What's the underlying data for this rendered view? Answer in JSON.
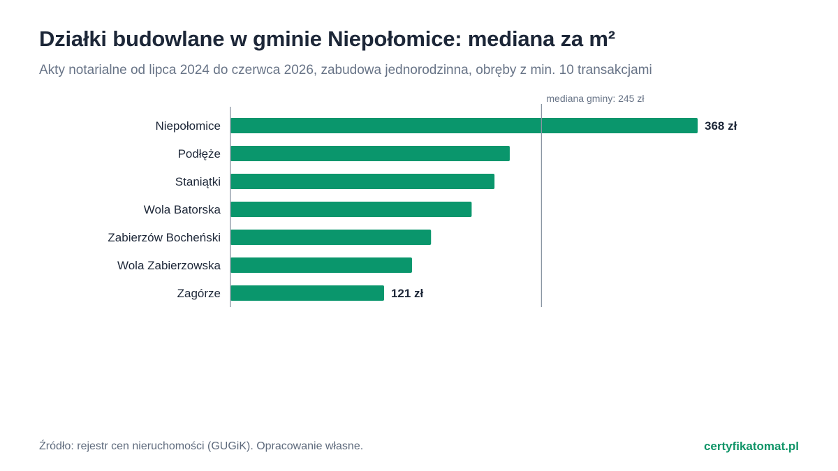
{
  "header": {
    "title": "Działki budowlane w gminie Niepołomice: mediana za m²",
    "subtitle": "Akty notarialne od lipca 2024 do czerwca 2026, zabudowa jednorodzinna, obręby z min. 10 transakcjami"
  },
  "chart_data": {
    "type": "bar",
    "orientation": "horizontal",
    "categories": [
      "Niepołomice",
      "Podłęże",
      "Staniątki",
      "Wola Batorska",
      "Zabierzów Bocheński",
      "Wola Zabierzowska",
      "Zagórze"
    ],
    "values": [
      368,
      220,
      208,
      190,
      158,
      143,
      121
    ],
    "value_labels": [
      "368 zł",
      "",
      "",
      "",
      "",
      "",
      "121 zł"
    ],
    "xlim": [
      0,
      368
    ],
    "reference_line": {
      "value": 245,
      "label": "mediana gminy: 245 zł"
    },
    "bar_color": "#0a966c",
    "grid": false
  },
  "footer": {
    "source": "Źródło: rejestr cen nieruchomości (GUGiK). Opracowanie własne.",
    "brand": "certyfikatomat.pl"
  }
}
